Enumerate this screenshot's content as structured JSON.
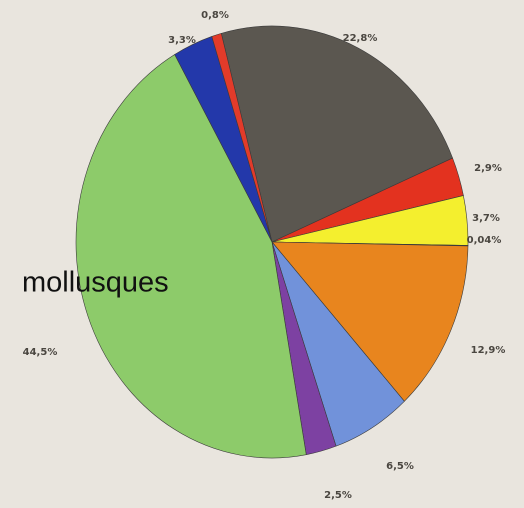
{
  "chart_data": {
    "type": "pie",
    "annotation": "mollusques",
    "values": [
      22.8,
      2.9,
      3.7,
      0.04,
      12.9,
      6.5,
      2.5,
      44.5,
      3.3,
      0.8
    ],
    "value_labels": [
      "22,8%",
      "2,9%",
      "3,7%",
      "0,04%",
      "12,9%",
      "6,5%",
      "2,5%",
      "44,5%",
      "3,3%",
      "0,8%"
    ],
    "colors": [
      "#5b5750",
      "#e3321f",
      "#f4ef2e",
      "#6a5a3a",
      "#e8851e",
      "#7192da",
      "#7d41a2",
      "#8dcb6a",
      "#2338aa",
      "#e23b2a"
    ]
  }
}
